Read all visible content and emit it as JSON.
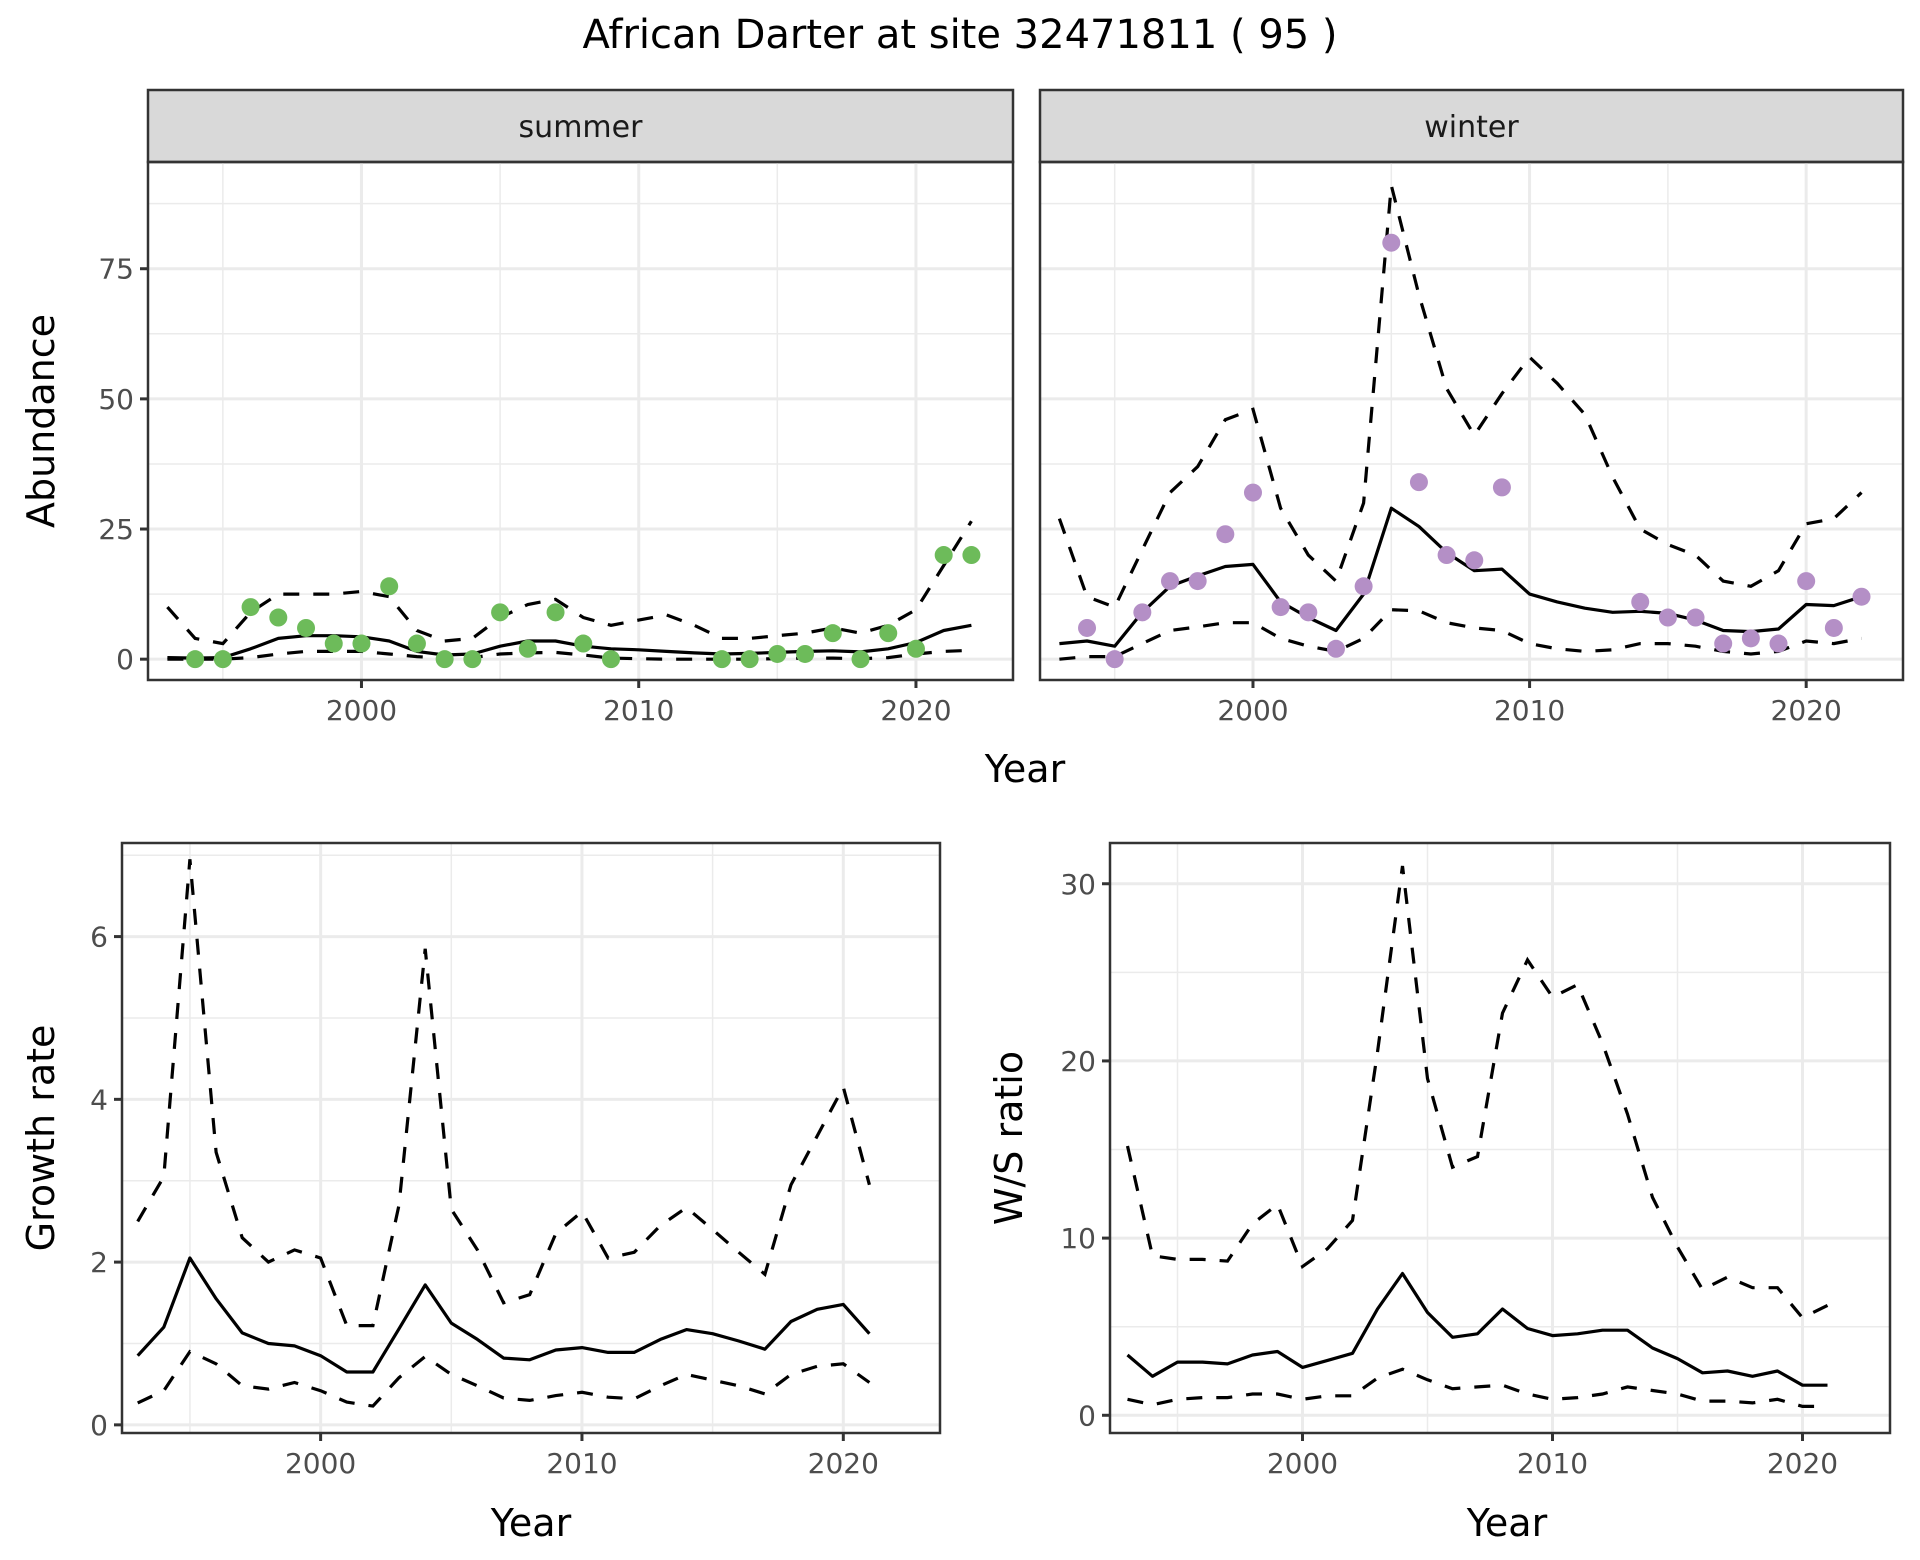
{
  "title": "African Darter at site 32471811 ( 95 )",
  "colors": {
    "summer_points": "#6dbb5a",
    "winter_points": "#b48fc6",
    "lines": "#000000",
    "strip_bg": "#d9d9d9",
    "grid": "#ebebeb",
    "border": "#333333"
  },
  "chart_data": [
    {
      "id": "abundance-summer",
      "type": "line",
      "facet": "summer",
      "title": "summer",
      "xlabel": "Year",
      "ylabel": "Abundance",
      "xlim": [
        1992.3,
        2023.5
      ],
      "ylim": [
        -4,
        95.5
      ],
      "x_ticks": [
        2000,
        2010,
        2020
      ],
      "x_tick_labels": [
        "2000",
        "2010",
        "2020"
      ],
      "y_ticks": [
        0,
        25,
        50,
        75
      ],
      "y_tick_labels": [
        "0",
        "25",
        "50",
        "75"
      ],
      "grid": true,
      "points": {
        "x": [
          1994,
          1995,
          1996,
          1997,
          1998,
          1999,
          2000,
          2001,
          2002,
          2003,
          2004,
          2005,
          2006,
          2007,
          2008,
          2009,
          2013,
          2014,
          2015,
          2016,
          2017,
          2018,
          2019,
          2020,
          2021,
          2022
        ],
        "y": [
          0,
          0,
          10,
          8,
          6,
          3,
          3,
          14,
          3,
          0,
          0,
          9,
          2,
          9,
          3,
          0,
          0,
          0,
          1,
          1,
          5,
          0,
          5,
          2,
          20,
          20
        ]
      },
      "series": [
        {
          "name": "mean",
          "style": "solid",
          "x": [
            1993,
            1994,
            1995,
            1996,
            1997,
            1998,
            1999,
            2000,
            2001,
            2002,
            2003,
            2004,
            2005,
            2006,
            2007,
            2008,
            2009,
            2010,
            2011,
            2012,
            2013,
            2014,
            2015,
            2016,
            2017,
            2018,
            2019,
            2020,
            2021,
            2022
          ],
          "y": [
            0.3,
            0.2,
            0.3,
            2,
            4,
            4.5,
            4.5,
            4.3,
            3.5,
            1.5,
            0.8,
            1,
            2.5,
            3.5,
            3.5,
            2.5,
            2,
            1.8,
            1.5,
            1.2,
            1,
            1.1,
            1.3,
            1.5,
            1.6,
            1.4,
            2,
            3.2,
            5.5,
            6.5
          ]
        },
        {
          "name": "upper",
          "style": "dashed",
          "x": [
            1993,
            1994,
            1995,
            1996,
            1997,
            1998,
            1999,
            2000,
            2001,
            2002,
            2003,
            2004,
            2005,
            2006,
            2007,
            2008,
            2009,
            2010,
            2011,
            2012,
            2013,
            2014,
            2015,
            2016,
            2017,
            2018,
            2019,
            2020,
            2021,
            2022
          ],
          "y": [
            10,
            4,
            3,
            9,
            12.5,
            12.5,
            12.5,
            13,
            12,
            5.5,
            3.5,
            4,
            8,
            10.5,
            11.5,
            8,
            6.5,
            7.5,
            8.5,
            6.5,
            4,
            4,
            4.5,
            5,
            6,
            5,
            6.5,
            9.5,
            18,
            26.5
          ]
        },
        {
          "name": "lower",
          "style": "dashed",
          "x": [
            1993,
            1994,
            1995,
            1996,
            1997,
            1998,
            1999,
            2000,
            2001,
            2002,
            2003,
            2004,
            2005,
            2006,
            2007,
            2008,
            2009,
            2010,
            2011,
            2012,
            2013,
            2014,
            2015,
            2016,
            2017,
            2018,
            2019,
            2020,
            2021,
            2022
          ],
          "y": [
            0,
            0,
            0,
            0.3,
            1,
            1.5,
            1.5,
            1.5,
            1,
            0.5,
            0.2,
            0.3,
            1,
            1.2,
            1.3,
            0.8,
            0.2,
            0.1,
            0,
            0,
            0,
            0,
            0.1,
            0.2,
            0.2,
            0.1,
            0.3,
            1,
            1.5,
            1.7
          ]
        }
      ]
    },
    {
      "id": "abundance-winter",
      "type": "line",
      "facet": "winter",
      "title": "winter",
      "xlabel": "Year",
      "ylabel": "Abundance",
      "xlim": [
        1992.3,
        2023.5
      ],
      "ylim": [
        -4,
        95.5
      ],
      "x_ticks": [
        2000,
        2010,
        2020
      ],
      "x_tick_labels": [
        "2000",
        "2010",
        "2020"
      ],
      "y_ticks": [
        0,
        25,
        50,
        75
      ],
      "grid": true,
      "points": {
        "x": [
          1994,
          1995,
          1996,
          1997,
          1998,
          1999,
          2000,
          2001,
          2002,
          2003,
          2004,
          2005,
          2006,
          2007,
          2008,
          2009,
          2014,
          2015,
          2016,
          2017,
          2018,
          2019,
          2020,
          2021,
          2022
        ],
        "y": [
          6,
          0,
          9,
          15,
          15,
          24,
          32,
          10,
          9,
          2,
          14,
          80,
          34,
          20,
          19,
          33,
          11,
          8,
          8,
          3,
          4,
          3,
          15,
          6,
          12
        ]
      },
      "series": [
        {
          "name": "mean",
          "style": "solid",
          "x": [
            1993,
            1994,
            1995,
            1996,
            1997,
            1998,
            1999,
            2000,
            2001,
            2002,
            2003,
            2004,
            2005,
            2006,
            2007,
            2008,
            2009,
            2010,
            2011,
            2012,
            2013,
            2014,
            2015,
            2016,
            2017,
            2018,
            2019,
            2020,
            2021,
            2022
          ],
          "y": [
            3,
            3.5,
            2.5,
            9,
            14,
            16,
            17.8,
            18.2,
            11,
            8,
            5.5,
            12.5,
            29,
            25.5,
            20.5,
            17,
            17.3,
            12.5,
            11,
            9.8,
            9,
            9.2,
            8.8,
            7.5,
            5.5,
            5.3,
            5.8,
            10.5,
            10.3,
            12
          ]
        },
        {
          "name": "upper",
          "style": "dashed",
          "x": [
            1993,
            1994,
            1995,
            1996,
            1997,
            1998,
            1999,
            2000,
            2001,
            2002,
            2003,
            2004,
            2005,
            2006,
            2007,
            2008,
            2009,
            2010,
            2011,
            2012,
            2013,
            2014,
            2015,
            2016,
            2017,
            2018,
            2019,
            2020,
            2021,
            2022
          ],
          "y": [
            27,
            12,
            10,
            21,
            32,
            37,
            46,
            48,
            29,
            20,
            15,
            30,
            91,
            70,
            52,
            43,
            51,
            58,
            53,
            47,
            35,
            25,
            22,
            20,
            15,
            14,
            17,
            26,
            27,
            32
          ]
        },
        {
          "name": "lower",
          "style": "dashed",
          "x": [
            1993,
            1994,
            1995,
            1996,
            1997,
            1998,
            1999,
            2000,
            2001,
            2002,
            2003,
            2004,
            2005,
            2006,
            2007,
            2008,
            2009,
            2010,
            2011,
            2012,
            2013,
            2014,
            2015,
            2016,
            2017,
            2018,
            2019,
            2020,
            2021,
            2022
          ],
          "y": [
            0,
            0.5,
            0.5,
            3,
            5.5,
            6.2,
            7,
            7,
            4,
            2.5,
            1.5,
            4,
            9.5,
            9.3,
            7,
            6,
            5.5,
            3,
            2,
            1.5,
            1.8,
            3,
            3,
            2.5,
            1.5,
            1,
            1.5,
            3.5,
            3,
            4
          ]
        }
      ]
    },
    {
      "id": "growth-rate",
      "type": "line",
      "title": "",
      "xlabel": "Year",
      "ylabel": "Growth rate",
      "xlim": [
        1992.4,
        2023.7
      ],
      "ylim": [
        -0.1,
        7.15
      ],
      "x_ticks": [
        2000,
        2010,
        2020
      ],
      "x_tick_labels": [
        "2000",
        "2010",
        "2020"
      ],
      "y_ticks": [
        0,
        2,
        4,
        6
      ],
      "y_tick_labels": [
        "0",
        "2",
        "4",
        "6"
      ],
      "grid": true,
      "series": [
        {
          "name": "mean",
          "style": "solid",
          "x": [
            1993,
            1994,
            1995,
            1996,
            1997,
            1998,
            1999,
            2000,
            2001,
            2002,
            2003,
            2004,
            2005,
            2006,
            2007,
            2008,
            2009,
            2010,
            2011,
            2012,
            2013,
            2014,
            2015,
            2016,
            2017,
            2018,
            2019,
            2020,
            2021
          ],
          "y": [
            0.85,
            1.2,
            2.05,
            1.55,
            1.13,
            1,
            0.97,
            0.85,
            0.65,
            0.65,
            1.18,
            1.72,
            1.25,
            1.05,
            0.82,
            0.8,
            0.92,
            0.95,
            0.89,
            0.89,
            1.05,
            1.17,
            1.12,
            1.03,
            0.93,
            1.27,
            1.42,
            1.48,
            1.12
          ]
        },
        {
          "name": "upper",
          "style": "dashed",
          "x": [
            1993,
            1994,
            1995,
            1996,
            1997,
            1998,
            1999,
            2000,
            2001,
            2002,
            2003,
            2004,
            2005,
            2006,
            2007,
            2008,
            2009,
            2010,
            2011,
            2012,
            2013,
            2014,
            2015,
            2016,
            2017,
            2018,
            2019,
            2020,
            2021
          ],
          "y": [
            2.5,
            3.05,
            6.95,
            3.35,
            2.3,
            2,
            2.15,
            2.05,
            1.22,
            1.22,
            2.7,
            5.85,
            2.65,
            2.15,
            1.5,
            1.6,
            2.35,
            2.62,
            2.05,
            2.12,
            2.45,
            2.67,
            2.4,
            2.12,
            1.85,
            2.95,
            3.55,
            4.15,
            2.95
          ]
        },
        {
          "name": "lower",
          "style": "dashed",
          "x": [
            1993,
            1994,
            1995,
            1996,
            1997,
            1998,
            1999,
            2000,
            2001,
            2002,
            2003,
            2004,
            2005,
            2006,
            2007,
            2008,
            2009,
            2010,
            2011,
            2012,
            2013,
            2014,
            2015,
            2016,
            2017,
            2018,
            2019,
            2020,
            2021
          ],
          "y": [
            0.27,
            0.42,
            0.9,
            0.75,
            0.48,
            0.44,
            0.52,
            0.42,
            0.28,
            0.23,
            0.58,
            0.84,
            0.62,
            0.48,
            0.33,
            0.3,
            0.36,
            0.4,
            0.34,
            0.32,
            0.48,
            0.62,
            0.55,
            0.48,
            0.38,
            0.62,
            0.72,
            0.75,
            0.52
          ]
        }
      ]
    },
    {
      "id": "ws-ratio",
      "type": "line",
      "title": "",
      "xlabel": "Year",
      "ylabel": "W/S ratio",
      "xlim": [
        1992.3,
        2023.5
      ],
      "ylim": [
        -1,
        32.3
      ],
      "x_ticks": [
        2000,
        2010,
        2020
      ],
      "x_tick_labels": [
        "2000",
        "2010",
        "2020"
      ],
      "y_ticks": [
        0,
        10,
        20,
        30
      ],
      "y_tick_labels": [
        "0",
        "10",
        "20",
        "30"
      ],
      "grid": true,
      "series": [
        {
          "name": "mean",
          "style": "solid",
          "x": [
            1993,
            1994,
            1995,
            1996,
            1997,
            1998,
            1999,
            2000,
            2001,
            2002,
            2003,
            2004,
            2005,
            2006,
            2007,
            2008,
            2009,
            2010,
            2011,
            2012,
            2013,
            2014,
            2015,
            2016,
            2017,
            2018,
            2019,
            2020,
            2021
          ],
          "y": [
            3.4,
            2.2,
            3,
            3,
            2.9,
            3.4,
            3.6,
            2.7,
            3.1,
            3.5,
            6,
            8,
            5.8,
            4.4,
            4.6,
            6,
            4.9,
            4.5,
            4.6,
            4.8,
            4.8,
            3.8,
            3.2,
            2.4,
            2.5,
            2.2,
            2.5,
            1.7,
            1.7
          ]
        },
        {
          "name": "upper",
          "style": "dashed",
          "x": [
            1993,
            1994,
            1995,
            1996,
            1997,
            1998,
            1999,
            2000,
            2001,
            2002,
            2003,
            2004,
            2005,
            2006,
            2007,
            2008,
            2009,
            2010,
            2011,
            2012,
            2013,
            2014,
            2015,
            2016,
            2017,
            2018,
            2019,
            2020,
            2021
          ],
          "y": [
            15.2,
            9,
            8.8,
            8.8,
            8.7,
            10.8,
            11.9,
            8.4,
            9.4,
            11,
            20.5,
            31,
            19,
            14,
            14.6,
            22.7,
            25.7,
            23.6,
            24.3,
            21,
            17,
            12.3,
            9.5,
            7.1,
            7.8,
            7.2,
            7.2,
            5.5,
            6.2
          ]
        },
        {
          "name": "lower",
          "style": "dashed",
          "x": [
            1993,
            1994,
            1995,
            1996,
            1997,
            1998,
            1999,
            2000,
            2001,
            2002,
            2003,
            2004,
            2005,
            2006,
            2007,
            2008,
            2009,
            2010,
            2011,
            2012,
            2013,
            2014,
            2015,
            2016,
            2017,
            2018,
            2019,
            2020,
            2021
          ],
          "y": [
            0.9,
            0.6,
            0.9,
            1,
            1,
            1.2,
            1.2,
            0.9,
            1.1,
            1.1,
            2.1,
            2.6,
            2,
            1.5,
            1.6,
            1.7,
            1.2,
            0.9,
            1,
            1.2,
            1.6,
            1.4,
            1.2,
            0.8,
            0.8,
            0.7,
            0.9,
            0.5,
            0.5
          ]
        }
      ]
    }
  ]
}
